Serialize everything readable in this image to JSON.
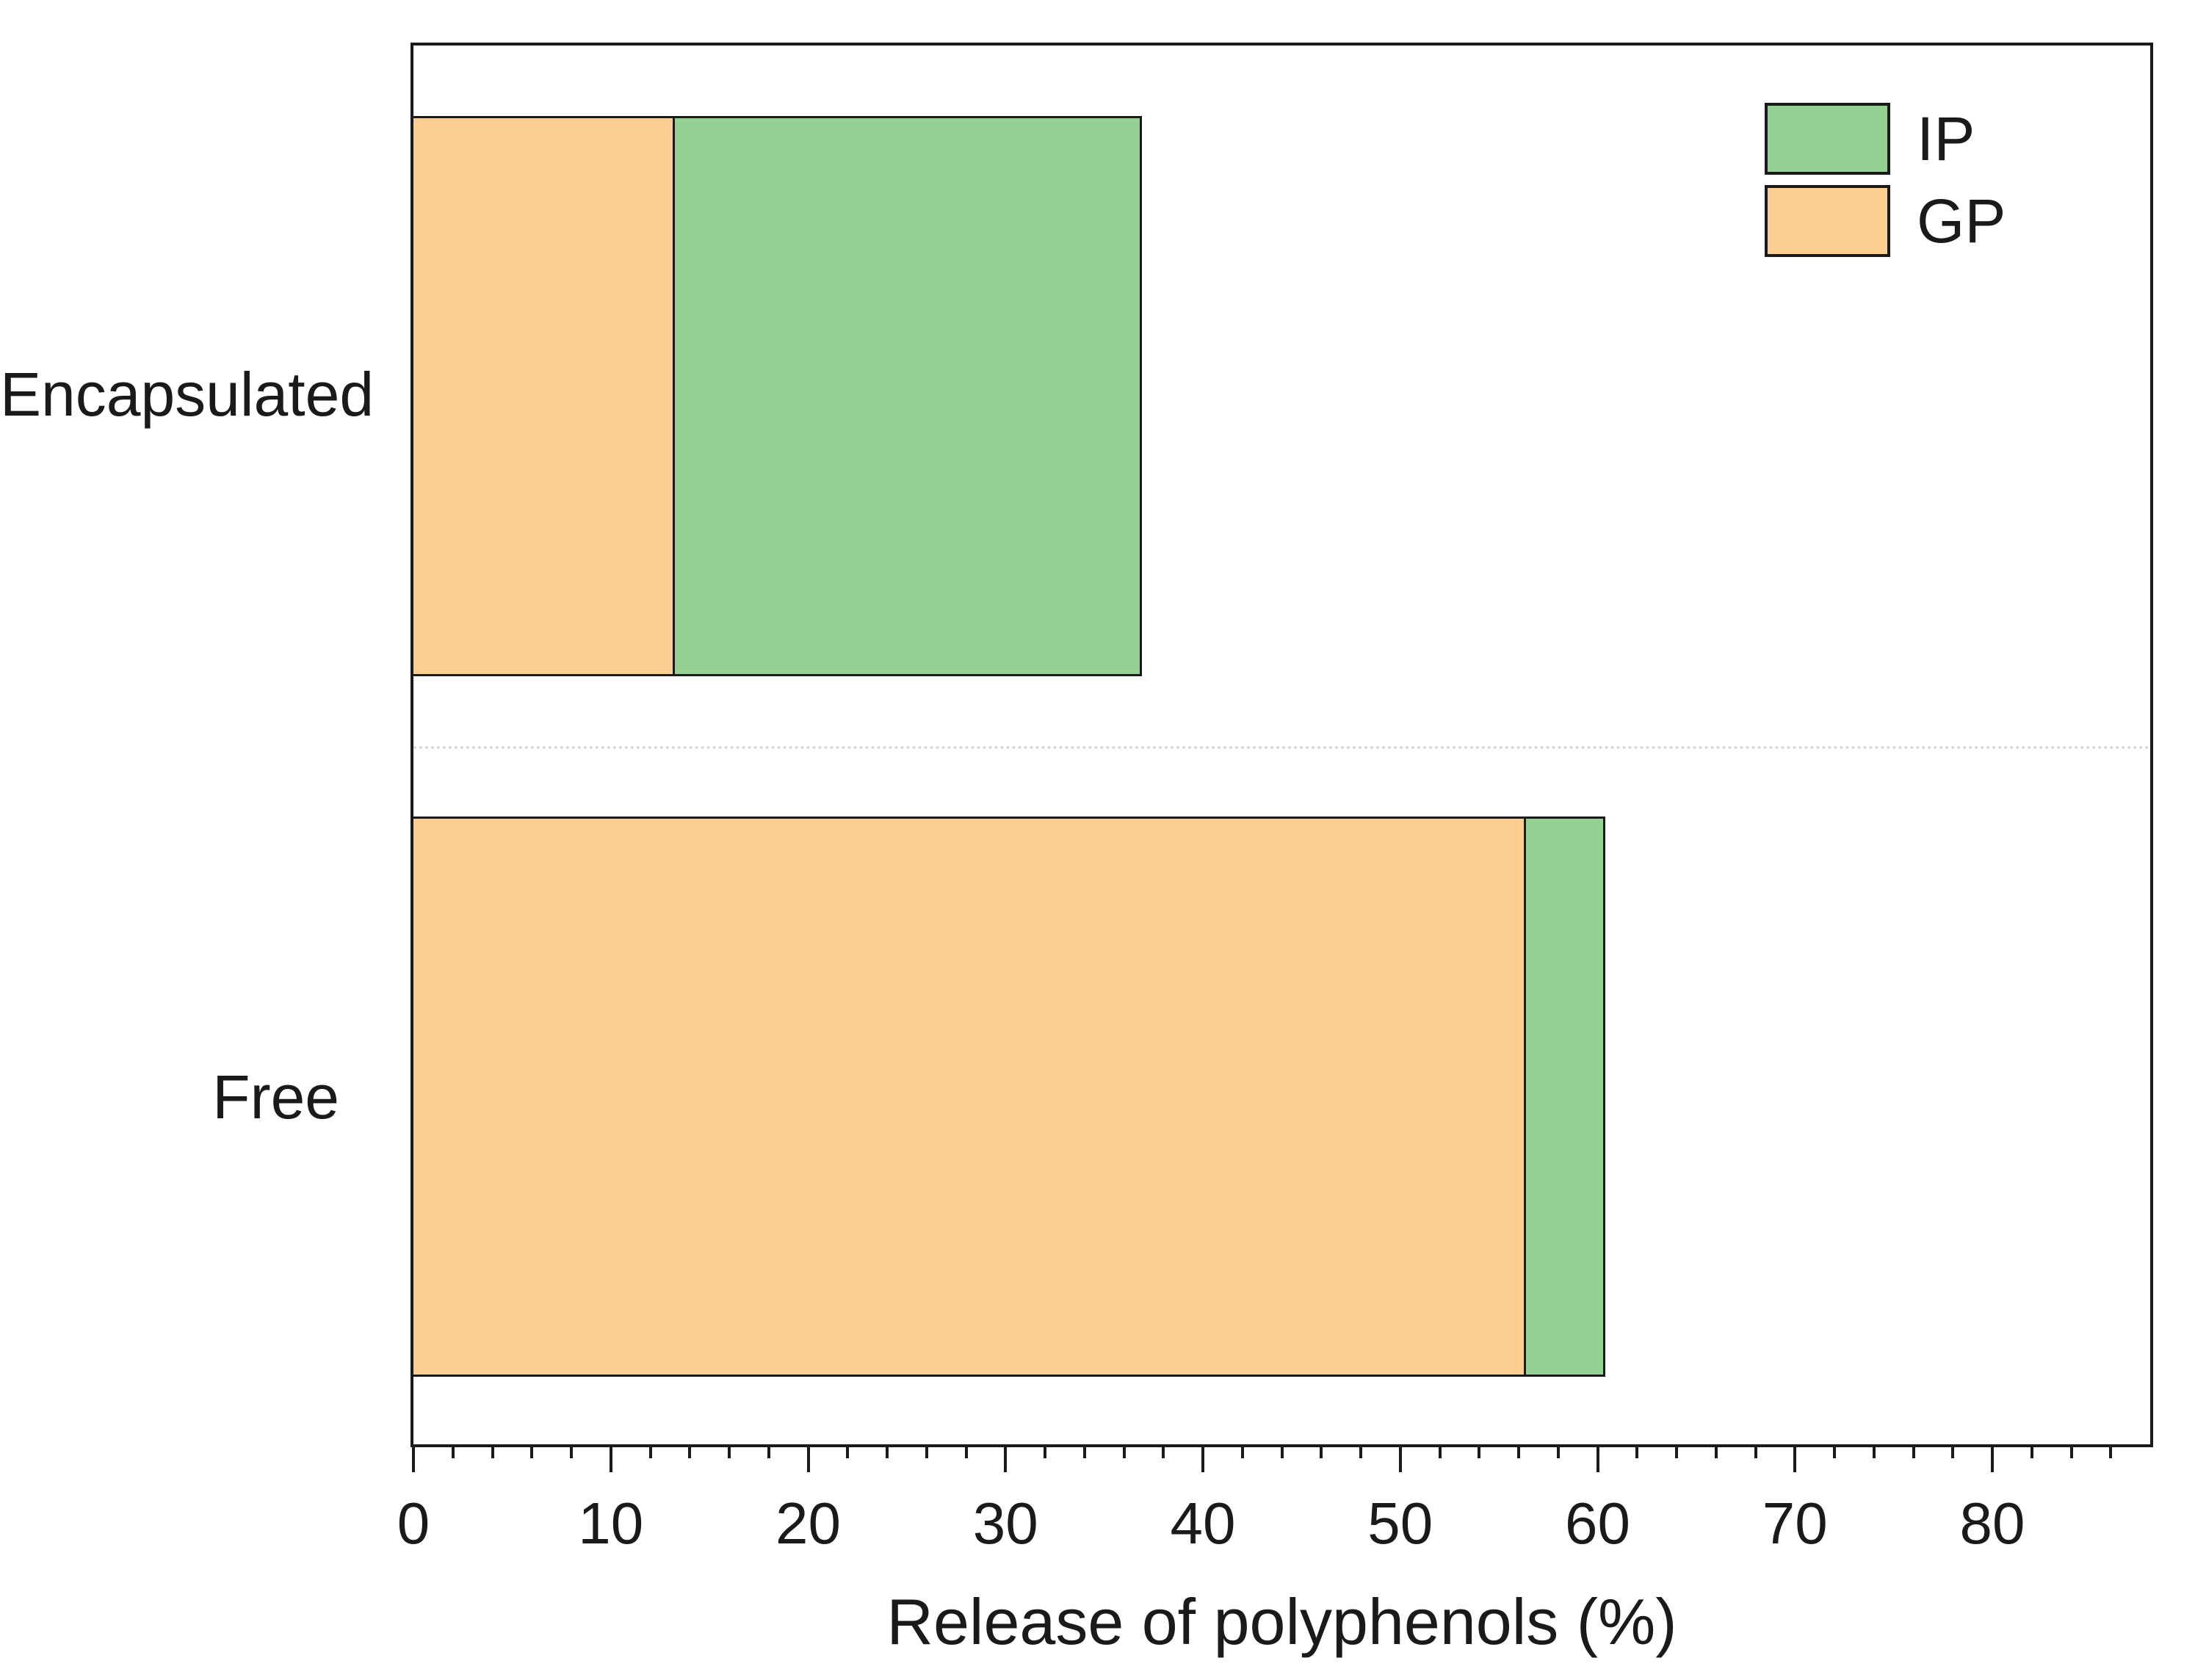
{
  "figure": {
    "background_color": "#ffffff",
    "axis_color": "#1a1a1a",
    "separator_line_color": "#d9d9d9"
  },
  "chart_data": {
    "type": "bar",
    "orientation": "horizontal",
    "stacked": true,
    "title": "",
    "xlabel": "Release of polyphenols (%)",
    "ylabel": "",
    "categories": [
      "Encapsulated",
      "Free"
    ],
    "series": [
      {
        "name": "IP",
        "color": "#95d095",
        "values": [
          23.6,
          4.0
        ]
      },
      {
        "name": "GP",
        "color": "#fcce92",
        "values": [
          13.3,
          56.4
        ]
      }
    ],
    "stack_order": [
      "GP",
      "IP"
    ],
    "stack_totals": [
      36.9,
      60.4
    ],
    "xlim": [
      0,
      88
    ],
    "x_major_ticks": [
      0,
      10,
      20,
      30,
      40,
      50,
      60,
      70,
      80
    ],
    "major_tick_step": 10,
    "minor_tick_step": 2,
    "grid": false,
    "legend": {
      "position": "top-right",
      "entries": [
        "IP",
        "GP"
      ]
    },
    "annotations": [
      "dashed separator line between category bands"
    ]
  }
}
